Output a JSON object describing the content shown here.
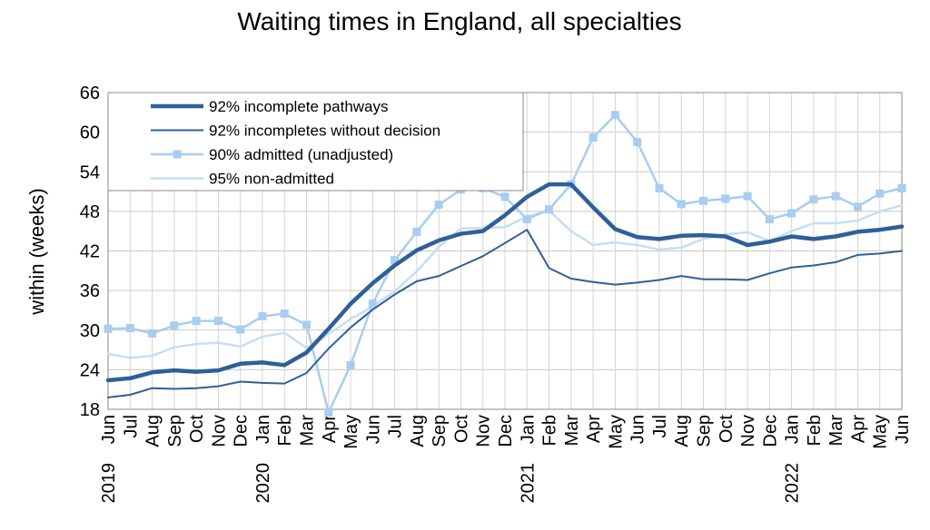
{
  "chart_data": {
    "type": "line",
    "title": "Waiting times in England, all specialties",
    "ylabel": "within  (weeks)",
    "xlabel": "",
    "ylim": [
      18,
      66
    ],
    "yticks": [
      18,
      24,
      30,
      36,
      42,
      48,
      54,
      60,
      66
    ],
    "grid": true,
    "legend_position": "top-left",
    "categories": [
      "Jun",
      "Jul",
      "Aug",
      "Sep",
      "Oct",
      "Nov",
      "Dec",
      "Jan",
      "Feb",
      "Mar",
      "Apr",
      "May",
      "Jun",
      "Jul",
      "Aug",
      "Sep",
      "Oct",
      "Nov",
      "Dec",
      "Jan",
      "Feb",
      "Mar",
      "Apr",
      "May",
      "Jun",
      "Jul",
      "Aug",
      "Sep",
      "Oct",
      "Nov",
      "Dec",
      "Jan",
      "Feb",
      "Mar",
      "Apr",
      "May",
      "Jun"
    ],
    "year_labels": [
      {
        "index": 0,
        "label": "2019"
      },
      {
        "index": 7,
        "label": "2020"
      },
      {
        "index": 19,
        "label": "2021"
      },
      {
        "index": 31,
        "label": "2022"
      }
    ],
    "series": [
      {
        "name": "92% incomplete pathways",
        "color": "#2f5f98",
        "width": 4.5,
        "marker": "none",
        "values": [
          22.4,
          22.7,
          23.6,
          23.9,
          23.7,
          23.9,
          24.9,
          25.1,
          24.7,
          26.6,
          30.2,
          34.0,
          37.1,
          39.8,
          42.1,
          43.6,
          44.6,
          45.0,
          47.4,
          50.2,
          52.1,
          52.1,
          48.6,
          45.3,
          44.1,
          43.8,
          44.3,
          44.4,
          44.2,
          42.9,
          43.4,
          44.2,
          43.8,
          44.2,
          44.9,
          45.2,
          45.7
        ]
      },
      {
        "name": "92% incompletes without decision",
        "color": "#2f5f98",
        "width": 2,
        "marker": "none",
        "values": [
          19.8,
          20.2,
          21.2,
          21.1,
          21.2,
          21.5,
          22.2,
          22.0,
          21.9,
          23.5,
          27.2,
          30.4,
          33.1,
          35.4,
          37.4,
          38.2,
          39.7,
          41.2,
          43.2,
          45.2,
          39.4,
          37.8,
          37.3,
          36.9,
          37.2,
          37.6,
          38.2,
          37.7,
          37.7,
          37.6,
          38.6,
          39.5,
          39.8,
          40.3,
          41.4,
          41.6,
          42.0
        ]
      },
      {
        "name": "90% admitted (unadjusted)",
        "color": "#a8cdf0",
        "width": 2.5,
        "marker": "square",
        "values": [
          30.2,
          30.3,
          29.5,
          30.7,
          31.4,
          31.4,
          30.1,
          32.1,
          32.5,
          30.8,
          17.5,
          24.7,
          34.0,
          40.6,
          44.9,
          49.0,
          51.3,
          51.5,
          50.2,
          46.8,
          48.3,
          52.1,
          59.2,
          62.6,
          58.5,
          51.5,
          49.1,
          49.6,
          49.9,
          50.3,
          46.8,
          47.7,
          49.8,
          50.3,
          48.7,
          50.7,
          51.5
        ]
      },
      {
        "name": "95% non-admitted",
        "color": "#c5def5",
        "width": 2.5,
        "marker": "none",
        "values": [
          26.4,
          25.8,
          26.1,
          27.4,
          27.9,
          28.1,
          27.5,
          29.0,
          29.6,
          27.3,
          29.4,
          31.7,
          33.6,
          35.9,
          38.9,
          42.6,
          45.4,
          45.5,
          45.6,
          47.2,
          48.1,
          45.0,
          42.9,
          43.3,
          42.9,
          42.2,
          42.5,
          43.8,
          44.5,
          44.8,
          43.5,
          45.0,
          46.2,
          46.2,
          46.6,
          48.0,
          48.9
        ]
      }
    ]
  }
}
